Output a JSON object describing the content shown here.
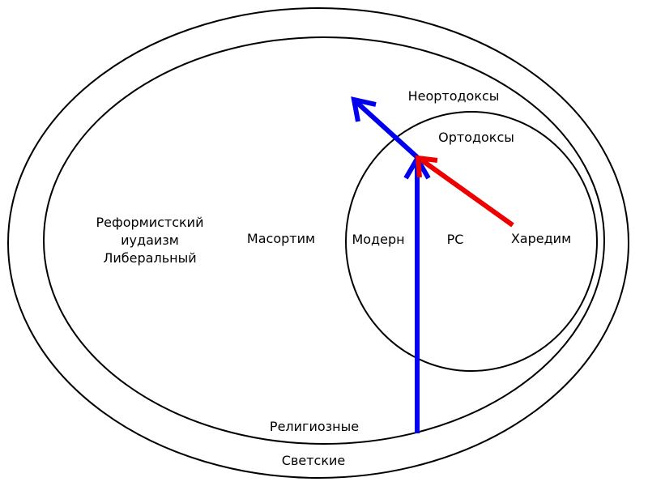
{
  "diagram": {
    "labels": {
      "secular": "Светские",
      "religious": "Религиозные",
      "neo_orthodox": "Неортодоксы",
      "orthodox": "Ортодоксы",
      "reform_line1": "Реформистский",
      "reform_line2": "иудаизм",
      "reform_line3": "Либеральный",
      "masorti": "Масортим",
      "modern": "Модерн",
      "rs": "РС",
      "haredim": "Харедим"
    },
    "colors": {
      "outline": "#000000",
      "blue_arrow": "#0000ee",
      "red_arrow": "#ee0000"
    }
  }
}
